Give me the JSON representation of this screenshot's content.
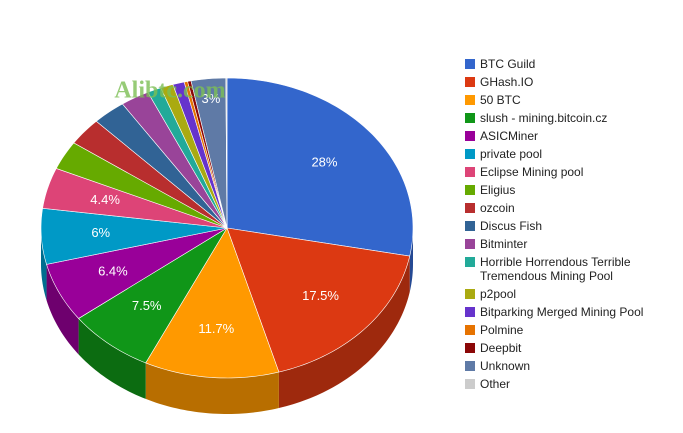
{
  "chart_data": {
    "type": "pie3d",
    "watermark": "Alibtc.com",
    "categories": [
      "BTC Guild",
      "GHash.IO",
      "50 BTC",
      "slush - mining.bitcoin.cz",
      "ASICMiner",
      "private pool",
      "Eclipse Mining pool",
      "Eligius",
      "ozcoin",
      "Discus Fish",
      "Bitminter",
      "Horrible Horrendous Terrible Tremendous Mining Pool",
      "p2pool",
      "Bitparking Merged Mining Pool",
      "Polmine",
      "Deepbit",
      "Unknown",
      "Other"
    ],
    "values": [
      28,
      17.5,
      11.7,
      7.5,
      6.4,
      6,
      4.4,
      3.1,
      3,
      2.9,
      2.5,
      1.2,
      1.1,
      1,
      0.3,
      0.3,
      3,
      0.1
    ],
    "value_labels": [
      "28%",
      "17.5%",
      "11.7%",
      "7.5%",
      "6.4%",
      "6%",
      "4.4%",
      null,
      null,
      null,
      null,
      null,
      null,
      null,
      null,
      null,
      "3%",
      null
    ],
    "colors": [
      "#3366cc",
      "#dc3912",
      "#ff9900",
      "#109618",
      "#990099",
      "#0099c6",
      "#dd4477",
      "#66aa00",
      "#b82e2e",
      "#316395",
      "#994499",
      "#22aa99",
      "#aaaa11",
      "#6633cc",
      "#e67300",
      "#8b0707",
      "#5f7aa6",
      "#cccccc"
    ]
  }
}
